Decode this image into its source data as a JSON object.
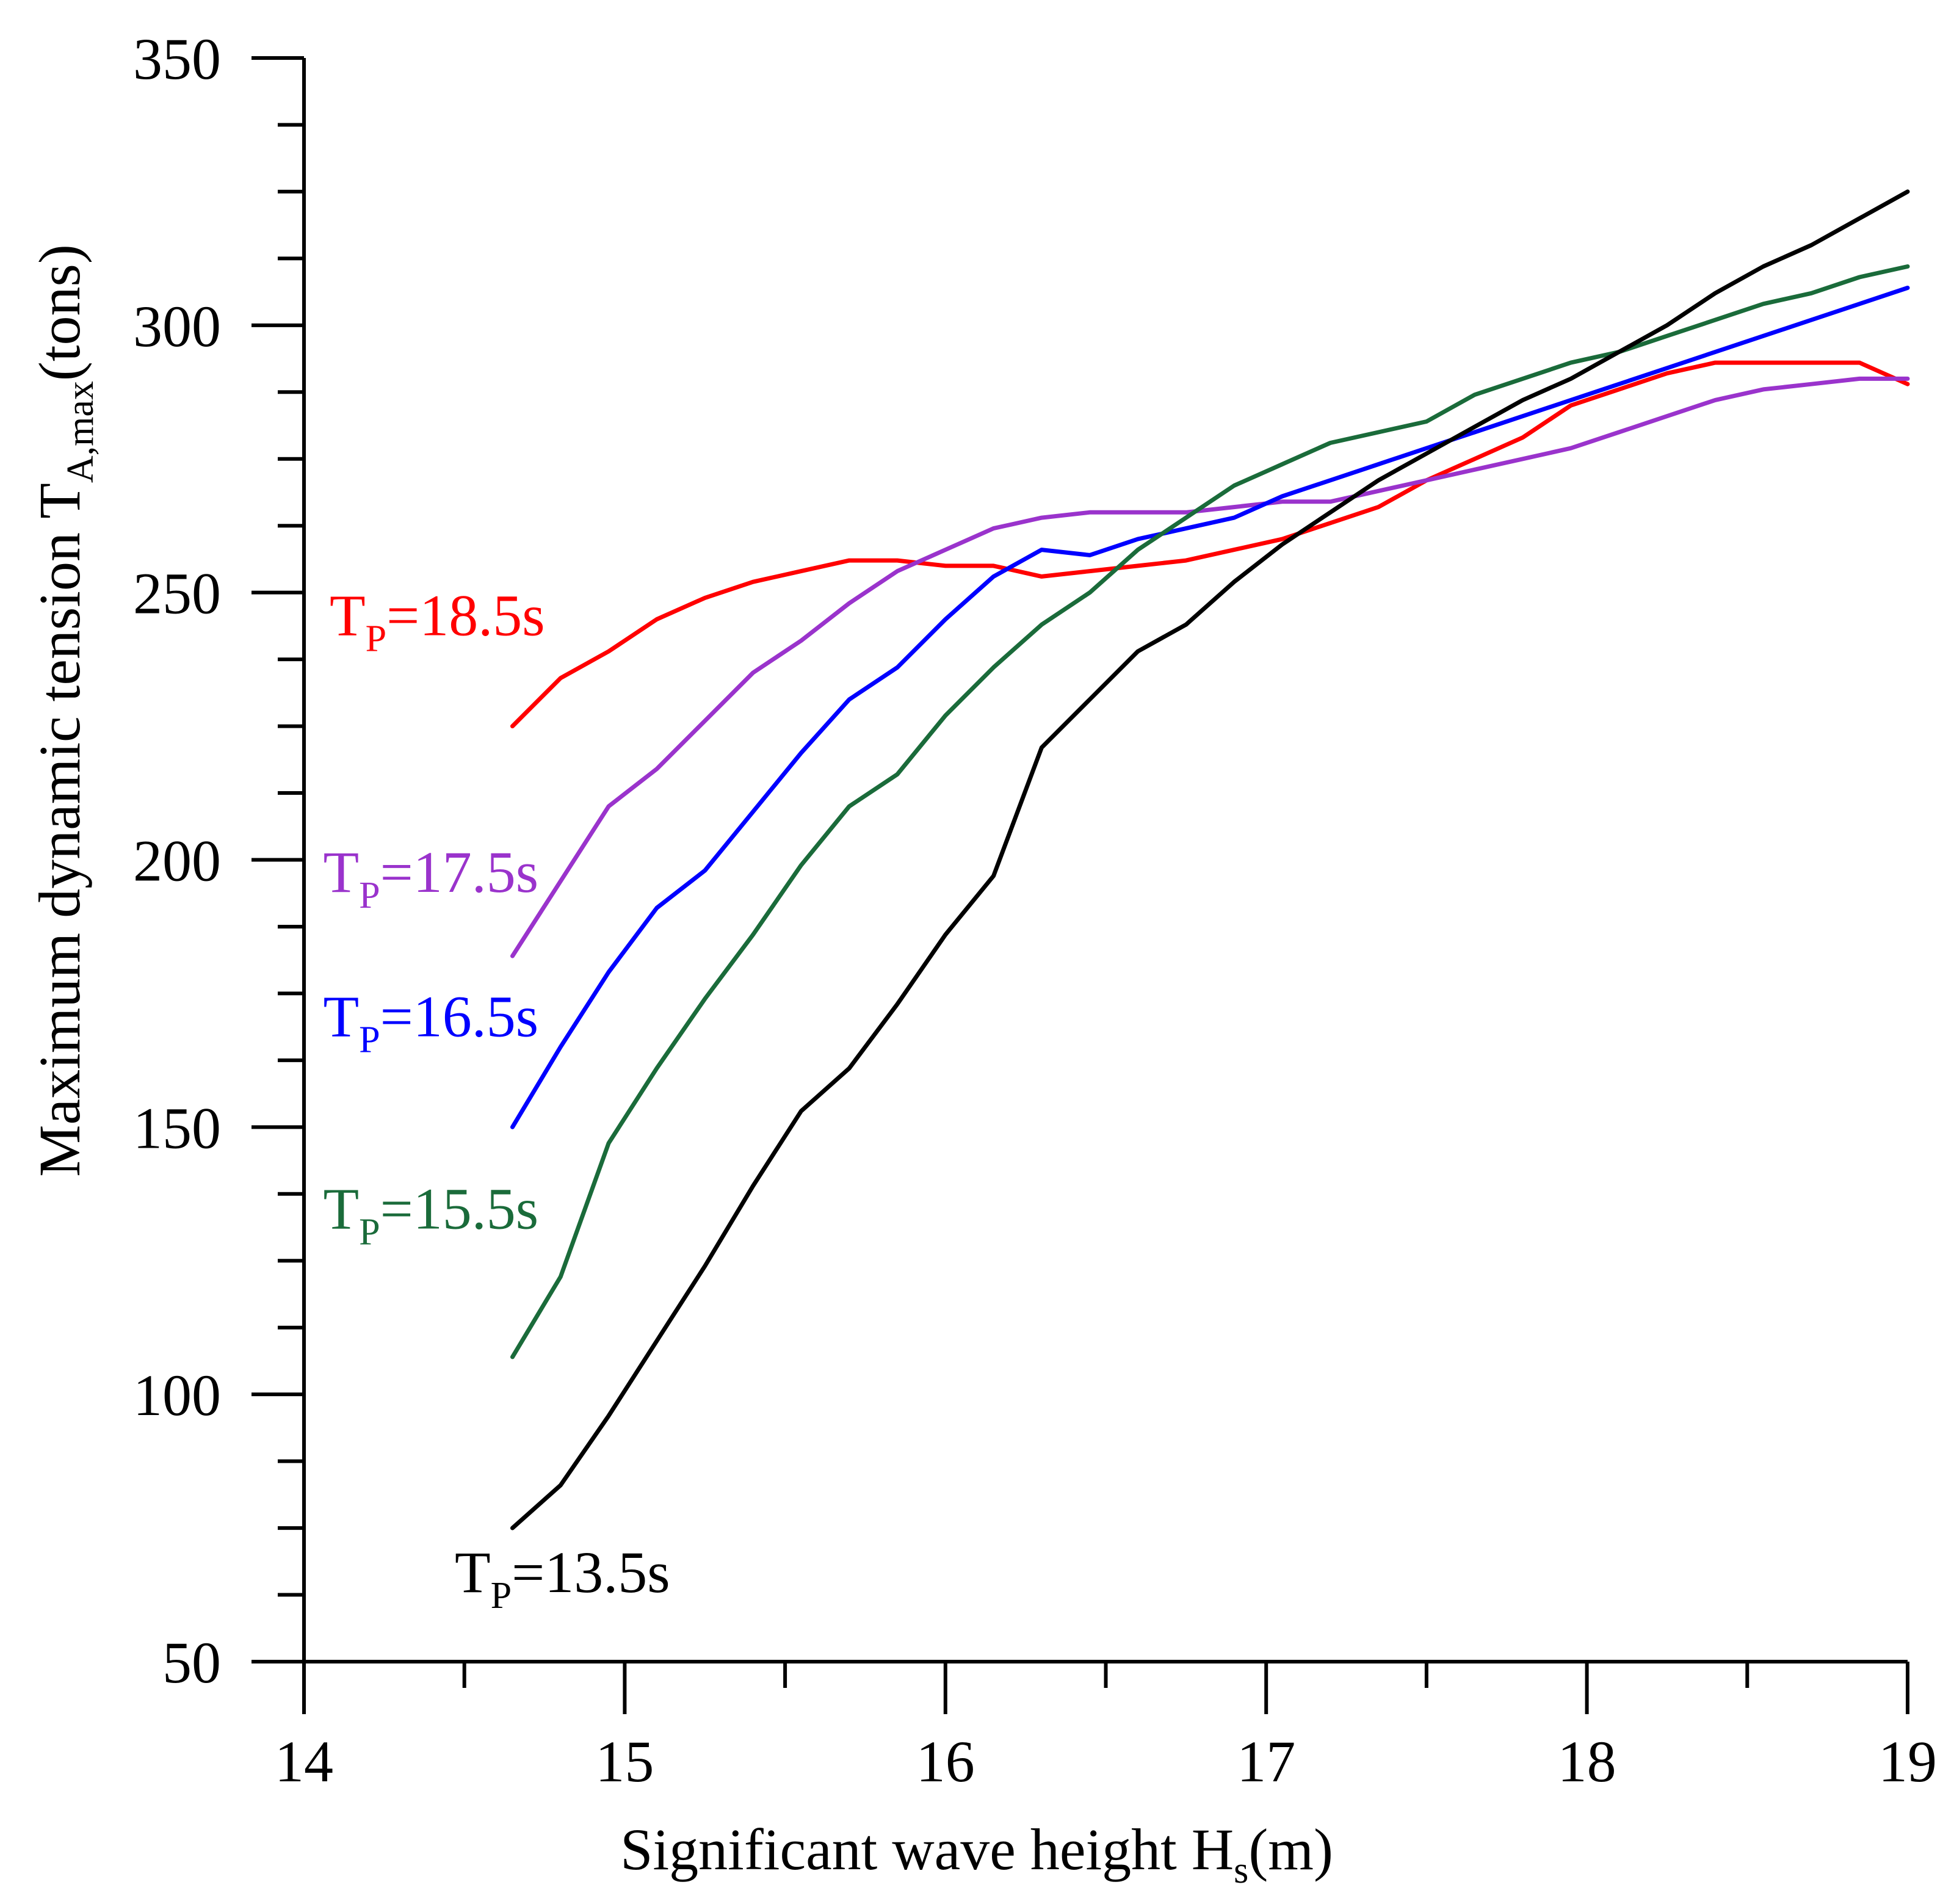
{
  "chart_data": {
    "type": "line",
    "title": "",
    "xlabel": "Significant wave height H",
    "xlabel_sub": "s",
    "xlabel_suffix": "(m)",
    "ylabel": "Maximum dynamic tension T",
    "ylabel_sub": "A,max",
    "ylabel_suffix": "(tons)",
    "xlim": [
      14,
      19
    ],
    "ylim": [
      50,
      350
    ],
    "xticks": [
      14,
      15,
      16,
      17,
      18,
      19
    ],
    "yticks": [
      50,
      100,
      150,
      200,
      250,
      300,
      350
    ],
    "grid": false,
    "series": [
      {
        "name": "TP=18.5s",
        "label_main": "T",
        "label_sub": "P",
        "label_rest": "=18.5s",
        "color": "#ff0000",
        "label_anchor": [
          14.08,
          242
        ],
        "x": [
          14.65,
          14.8,
          14.95,
          15.1,
          15.25,
          15.4,
          15.55,
          15.7,
          15.85,
          16.0,
          16.15,
          16.3,
          16.45,
          16.6,
          16.75,
          16.9,
          17.05,
          17.2,
          17.35,
          17.5,
          17.65,
          17.8,
          17.95,
          18.1,
          18.25,
          18.4,
          18.55,
          18.7,
          18.85,
          19.0
        ],
        "y": [
          225,
          234,
          239,
          245,
          249,
          252,
          254,
          256,
          256,
          255,
          255,
          253,
          254,
          255,
          256,
          258,
          260,
          263,
          266,
          271,
          275,
          279,
          285,
          288,
          291,
          293,
          293,
          293,
          293,
          289
        ]
      },
      {
        "name": "TP=17.5s",
        "label_main": "T",
        "label_sub": "P",
        "label_rest": "=17.5s",
        "color": "#9a33cc",
        "label_anchor": [
          14.06,
          194
        ],
        "x": [
          14.65,
          14.8,
          14.95,
          15.1,
          15.25,
          15.4,
          15.55,
          15.7,
          15.85,
          16.0,
          16.15,
          16.3,
          16.45,
          16.6,
          16.75,
          16.9,
          17.05,
          17.2,
          17.35,
          17.5,
          17.65,
          17.8,
          17.95,
          18.1,
          18.25,
          18.4,
          18.55,
          18.7,
          18.85,
          19.0
        ],
        "y": [
          182,
          196,
          210,
          217,
          226,
          235,
          241,
          248,
          254,
          258,
          262,
          264,
          265,
          265,
          265,
          266,
          267,
          267,
          269,
          271,
          273,
          275,
          277,
          280,
          283,
          286,
          288,
          289,
          290,
          290
        ]
      },
      {
        "name": "TP=16.5s",
        "label_main": "T",
        "label_sub": "P",
        "label_rest": "=16.5s",
        "color": "#0000ff",
        "label_anchor": [
          14.06,
          167
        ],
        "x": [
          14.65,
          14.8,
          14.95,
          15.1,
          15.25,
          15.4,
          15.55,
          15.7,
          15.85,
          16.0,
          16.15,
          16.3,
          16.45,
          16.6,
          16.75,
          16.9,
          17.05,
          17.2,
          17.35,
          17.5,
          17.65,
          17.8,
          17.95,
          18.1,
          18.25,
          18.4,
          18.55,
          18.7,
          18.85,
          19.0
        ],
        "y": [
          150,
          165,
          179,
          191,
          198,
          209,
          220,
          230,
          236,
          245,
          253,
          258,
          257,
          260,
          262,
          264,
          268,
          271,
          274,
          277,
          280,
          283,
          286,
          289,
          292,
          295,
          298,
          301,
          304,
          307
        ]
      },
      {
        "name": "TP=15.5s",
        "label_main": "T",
        "label_sub": "P",
        "label_rest": "=15.5s",
        "color": "#1a6b3a",
        "label_anchor": [
          14.06,
          131
        ],
        "x": [
          14.65,
          14.8,
          14.95,
          15.1,
          15.25,
          15.4,
          15.55,
          15.7,
          15.85,
          16.0,
          16.15,
          16.3,
          16.45,
          16.6,
          16.75,
          16.9,
          17.05,
          17.2,
          17.35,
          17.5,
          17.65,
          17.8,
          17.95,
          18.1,
          18.25,
          18.4,
          18.55,
          18.7,
          18.85,
          19.0
        ],
        "y": [
          107,
          122,
          147,
          161,
          174,
          186,
          199,
          210,
          216,
          227,
          236,
          244,
          250,
          258,
          264,
          270,
          274,
          278,
          280,
          282,
          287,
          290,
          293,
          295,
          298,
          301,
          304,
          306,
          309,
          311
        ]
      },
      {
        "name": "TP=13.5s",
        "label_main": "T",
        "label_sub": "P",
        "label_rest": "=13.5s",
        "color": "#000000",
        "label_anchor": [
          14.47,
          63
        ],
        "x": [
          14.65,
          14.8,
          14.95,
          15.1,
          15.25,
          15.4,
          15.55,
          15.7,
          15.85,
          16.0,
          16.15,
          16.3,
          16.45,
          16.6,
          16.75,
          16.9,
          17.05,
          17.2,
          17.35,
          17.5,
          17.65,
          17.8,
          17.95,
          18.1,
          18.25,
          18.4,
          18.55,
          18.7,
          18.85,
          19.0
        ],
        "y": [
          75,
          83,
          96,
          110,
          124,
          139,
          153,
          161,
          173,
          186,
          197,
          221,
          230,
          239,
          244,
          252,
          259,
          265,
          271,
          276,
          281,
          286,
          290,
          295,
          300,
          306,
          311,
          315,
          320,
          325
        ]
      }
    ]
  }
}
